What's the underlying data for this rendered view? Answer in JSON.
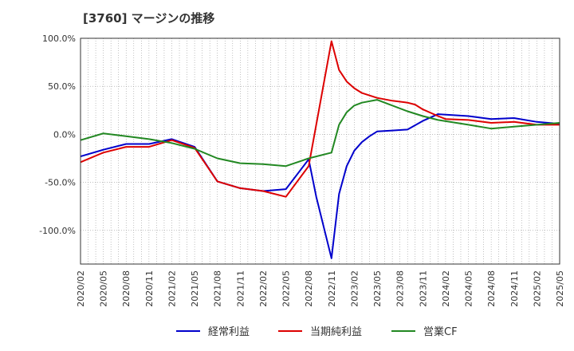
{
  "chart_data": {
    "type": "line",
    "title": "[3760]  マージンの推移",
    "xlabel": "",
    "ylabel": "",
    "ylim": [
      -135,
      100
    ],
    "yticks": [
      100,
      50,
      0,
      -50,
      -100
    ],
    "ytick_labels": [
      "100.0%",
      "50.0%",
      "0.0%",
      "-50.0%",
      "-100.0%"
    ],
    "x_tick_labels": [
      "2020/02",
      "2020/05",
      "2020/08",
      "2020/11",
      "2021/02",
      "2021/05",
      "2021/08",
      "2021/11",
      "2022/02",
      "2022/05",
      "2022/08",
      "2022/11",
      "2023/02",
      "2023/05",
      "2023/08",
      "2023/11",
      "2024/02",
      "2024/05",
      "2024/08",
      "2024/11",
      "2025/02",
      "2025/05"
    ],
    "grid": true,
    "legend_position": "bottom",
    "series": [
      {
        "name": "経常利益",
        "color": "#0000cc",
        "points": [
          [
            0,
            -23
          ],
          [
            3,
            -16
          ],
          [
            6,
            -10
          ],
          [
            9,
            -10
          ],
          [
            12,
            -5
          ],
          [
            15,
            -13
          ],
          [
            18,
            -49
          ],
          [
            21,
            -56
          ],
          [
            24,
            -59
          ],
          [
            27,
            -57
          ],
          [
            30,
            -26
          ],
          [
            31,
            -65
          ],
          [
            33,
            -129
          ],
          [
            34,
            -62
          ],
          [
            35,
            -33
          ],
          [
            36,
            -17
          ],
          [
            37,
            -8
          ],
          [
            38,
            -2
          ],
          [
            39,
            3
          ],
          [
            41,
            4
          ],
          [
            43,
            5
          ],
          [
            45,
            14
          ],
          [
            47,
            21
          ],
          [
            51,
            19
          ],
          [
            54,
            16
          ],
          [
            57,
            17
          ],
          [
            60,
            13
          ],
          [
            63,
            11
          ]
        ]
      },
      {
        "name": "当期純利益",
        "color": "#dd0000",
        "points": [
          [
            0,
            -29
          ],
          [
            3,
            -19
          ],
          [
            6,
            -13
          ],
          [
            9,
            -13
          ],
          [
            12,
            -6
          ],
          [
            15,
            -14
          ],
          [
            18,
            -49
          ],
          [
            21,
            -56
          ],
          [
            24,
            -59
          ],
          [
            27,
            -65
          ],
          [
            30,
            -33
          ],
          [
            33,
            97
          ],
          [
            34,
            67
          ],
          [
            35,
            55
          ],
          [
            36,
            48
          ],
          [
            37,
            43
          ],
          [
            39,
            38
          ],
          [
            41,
            35
          ],
          [
            43,
            33
          ],
          [
            44,
            31
          ],
          [
            45,
            26
          ],
          [
            47,
            19
          ],
          [
            48,
            16
          ],
          [
            51,
            15
          ],
          [
            54,
            12
          ],
          [
            57,
            13
          ],
          [
            60,
            10
          ],
          [
            63,
            10
          ]
        ]
      },
      {
        "name": "営業CF",
        "color": "#228822",
        "points": [
          [
            0,
            -6
          ],
          [
            3,
            1
          ],
          [
            6,
            -2
          ],
          [
            9,
            -5
          ],
          [
            12,
            -9
          ],
          [
            15,
            -15
          ],
          [
            18,
            -25
          ],
          [
            21,
            -30
          ],
          [
            24,
            -31
          ],
          [
            27,
            -33
          ],
          [
            30,
            -25
          ],
          [
            33,
            -19
          ],
          [
            34,
            10
          ],
          [
            35,
            23
          ],
          [
            36,
            30
          ],
          [
            37,
            33
          ],
          [
            39,
            36
          ],
          [
            41,
            30
          ],
          [
            43,
            24
          ],
          [
            45,
            19
          ],
          [
            47,
            15
          ],
          [
            51,
            10
          ],
          [
            54,
            6
          ],
          [
            57,
            8
          ],
          [
            60,
            10
          ],
          [
            63,
            12
          ]
        ]
      }
    ]
  }
}
